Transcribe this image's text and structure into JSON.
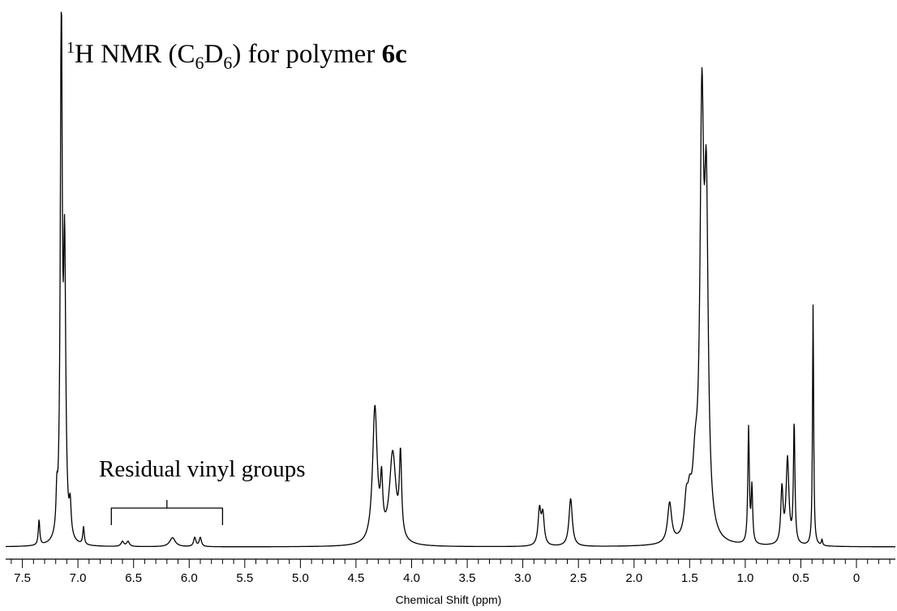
{
  "chart_data": {
    "type": "line",
    "title_parts": [
      "1",
      "H NMR (C",
      "6",
      "D",
      "6",
      ") for polymer ",
      "6c"
    ],
    "xlabel": "Chemical Shift (ppm)",
    "ylabel": "",
    "x_reversed": true,
    "xlim": [
      7.65,
      -0.35
    ],
    "x_ticks": [
      7.5,
      7.0,
      6.5,
      6.0,
      5.5,
      5.0,
      4.5,
      4.0,
      3.5,
      3.0,
      2.5,
      2.0,
      1.5,
      1.0,
      0.5,
      0
    ],
    "x_tick_labels": [
      "7.5",
      "7.0",
      "6.5",
      "6.0",
      "5.5",
      "5.0",
      "4.5",
      "4.0",
      "3.5",
      "3.0",
      "2.5",
      "2.0",
      "1.5",
      "1.0",
      "0.5",
      "0"
    ],
    "annotation": {
      "text": "Residual vinyl groups",
      "range": [
        6.7,
        5.7
      ]
    },
    "peaks": [
      {
        "ppm": 7.35,
        "height": 0.05,
        "width": 0.008
      },
      {
        "ppm": 7.19,
        "height": 0.07,
        "width": 0.008
      },
      {
        "ppm": 7.15,
        "height": 1.06,
        "width": 0.01
      },
      {
        "ppm": 7.12,
        "height": 0.55,
        "width": 0.012
      },
      {
        "ppm": 7.07,
        "height": 0.06,
        "width": 0.01
      },
      {
        "ppm": 6.95,
        "height": 0.035,
        "width": 0.008
      },
      {
        "ppm": 6.6,
        "height": 0.01,
        "width": 0.015
      },
      {
        "ppm": 6.55,
        "height": 0.01,
        "width": 0.015
      },
      {
        "ppm": 6.15,
        "height": 0.018,
        "width": 0.03
      },
      {
        "ppm": 5.95,
        "height": 0.018,
        "width": 0.012
      },
      {
        "ppm": 5.9,
        "height": 0.018,
        "width": 0.012
      },
      {
        "ppm": 4.33,
        "height": 0.27,
        "width": 0.025
      },
      {
        "ppm": 4.27,
        "height": 0.1,
        "width": 0.012
      },
      {
        "ppm": 4.17,
        "height": 0.18,
        "width": 0.035
      },
      {
        "ppm": 4.1,
        "height": 0.16,
        "width": 0.012
      },
      {
        "ppm": 2.85,
        "height": 0.07,
        "width": 0.015
      },
      {
        "ppm": 2.82,
        "height": 0.06,
        "width": 0.015
      },
      {
        "ppm": 2.57,
        "height": 0.095,
        "width": 0.018
      },
      {
        "ppm": 1.68,
        "height": 0.08,
        "width": 0.022
      },
      {
        "ppm": 1.53,
        "height": 0.065,
        "width": 0.02
      },
      {
        "ppm": 1.5,
        "height": 0.055,
        "width": 0.02
      },
      {
        "ppm": 1.45,
        "height": 0.12,
        "width": 0.03
      },
      {
        "ppm": 1.39,
        "height": 0.8,
        "width": 0.02
      },
      {
        "ppm": 1.35,
        "height": 0.62,
        "width": 0.02
      },
      {
        "ppm": 0.97,
        "height": 0.23,
        "width": 0.008
      },
      {
        "ppm": 0.94,
        "height": 0.11,
        "width": 0.008
      },
      {
        "ppm": 0.67,
        "height": 0.11,
        "width": 0.012
      },
      {
        "ppm": 0.62,
        "height": 0.17,
        "width": 0.015
      },
      {
        "ppm": 0.56,
        "height": 0.24,
        "width": 0.008
      },
      {
        "ppm": 0.39,
        "height": 0.48,
        "width": 0.006
      },
      {
        "ppm": 0.31,
        "height": 0.012,
        "width": 0.006
      }
    ]
  }
}
